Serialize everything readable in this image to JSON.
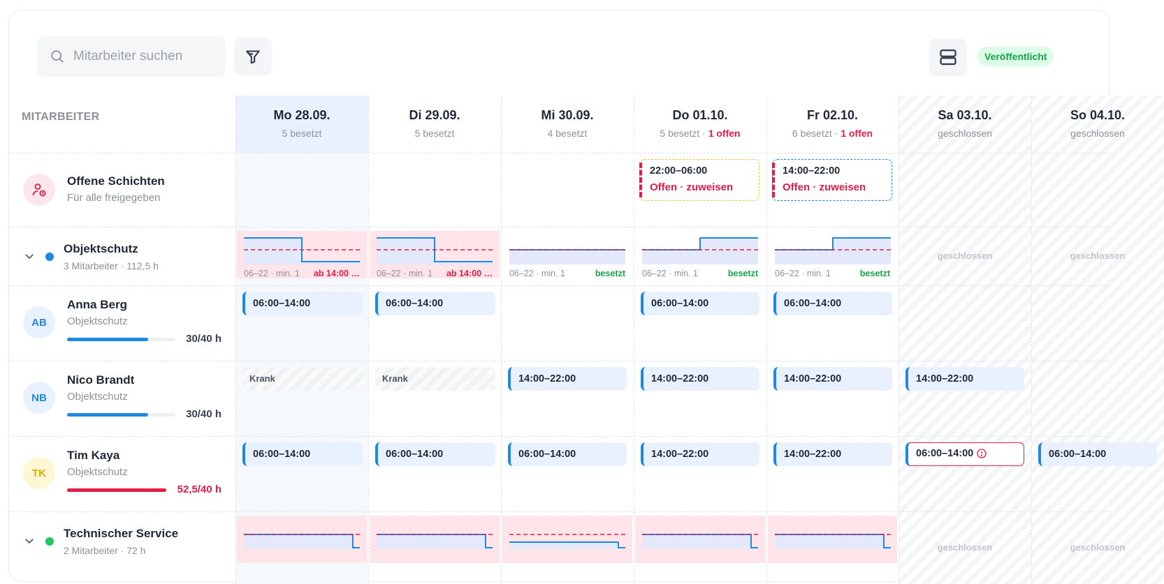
{
  "toolbar": {
    "search_placeholder": "Mitarbeiter suchen",
    "filter_icon": "filter-icon",
    "layout_icon": "rows-layout-icon",
    "status_badge": "Veröffentlicht"
  },
  "header": {
    "employee_col": "MITARBEITER",
    "days": [
      {
        "label": "Mo 28.09.",
        "count": "5 besetzt",
        "open": ""
      },
      {
        "label": "Di 29.09.",
        "count": "5 besetzt",
        "open": ""
      },
      {
        "label": "Mi 30.09.",
        "count": "4 besetzt",
        "open": ""
      },
      {
        "label": "Do 01.10.",
        "count": "5 besetzt · ",
        "open": "1 offen"
      },
      {
        "label": "Fr 02.10.",
        "count": "6 besetzt · ",
        "open": "1 offen"
      },
      {
        "label": "Sa 03.10.",
        "count": "geschlossen",
        "open": ""
      },
      {
        "label": "So 04.10.",
        "count": "geschlossen",
        "open": ""
      }
    ]
  },
  "open_shifts": {
    "title": "Offene Schichten",
    "subtitle": "Für alle freigegeben",
    "icon": "user-clock-icon",
    "items": [
      {
        "time": "22:00–06:00",
        "status": "Offen · zuweisen",
        "border": "#f5c542"
      },
      {
        "time": "14:00–22:00",
        "status": "Offen · zuweisen",
        "border": "#1e88e5"
      }
    ]
  },
  "groups": [
    {
      "name": "Objektschutz",
      "meta": "3 Mitarbeiter · 112,5 h",
      "color": "#1e88e5",
      "coverage": [
        {
          "range": "06–22 · min. 1",
          "status": "ab 14:00 …",
          "state": "under"
        },
        {
          "range": "06–22 · min. 1",
          "status": "ab 14:00 …",
          "state": "under"
        },
        {
          "range": "06–22 · min. 1",
          "status": "besetzt",
          "state": "ok"
        },
        {
          "range": "06–22 · min. 1",
          "status": "besetzt",
          "state": "ok"
        },
        {
          "range": "06–22 · min. 1",
          "status": "besetzt",
          "state": "ok"
        }
      ],
      "closed_label": "geschlossen"
    },
    {
      "name": "Technischer Service",
      "meta": "2 Mitarbeiter · 72 h",
      "color": "#22c55e",
      "closed_label": "geschlossen"
    }
  ],
  "employees": [
    {
      "initials": "AB",
      "name": "Anna Berg",
      "team": "Objektschutz",
      "hours": "30/40 h",
      "progress": 0.75,
      "bar_color": "#1e88e5",
      "avatar_bg": "#e8f1fd",
      "avatar_fg": "#1e88e5",
      "hours_color": "#374151",
      "shifts": [
        "06:00–14:00",
        "06:00–14:00",
        "",
        "06:00–14:00",
        "06:00–14:00",
        "",
        ""
      ]
    },
    {
      "initials": "NB",
      "name": "Nico Brandt",
      "team": "Objektschutz",
      "hours": "30/40 h",
      "progress": 0.75,
      "bar_color": "#1e88e5",
      "avatar_bg": "#e8f1fd",
      "avatar_fg": "#1e88e5",
      "hours_color": "#374151",
      "shifts": [
        "Krank",
        "Krank",
        "14:00–22:00",
        "14:00–22:00",
        "14:00–22:00",
        "14:00–22:00",
        ""
      ]
    },
    {
      "initials": "TK",
      "name": "Tim Kaya",
      "team": "Objektschutz",
      "hours": "52,5/40 h",
      "progress": 1.0,
      "bar_color": "#e11d48",
      "avatar_bg": "#fef7d6",
      "avatar_fg": "#e0a800",
      "hours_color": "#e11d48",
      "shifts": [
        "06:00–14:00",
        "06:00–14:00",
        "06:00–14:00",
        "14:00–22:00",
        "14:00–22:00",
        "06:00–14:00",
        "06:00–14:00"
      ]
    }
  ]
}
